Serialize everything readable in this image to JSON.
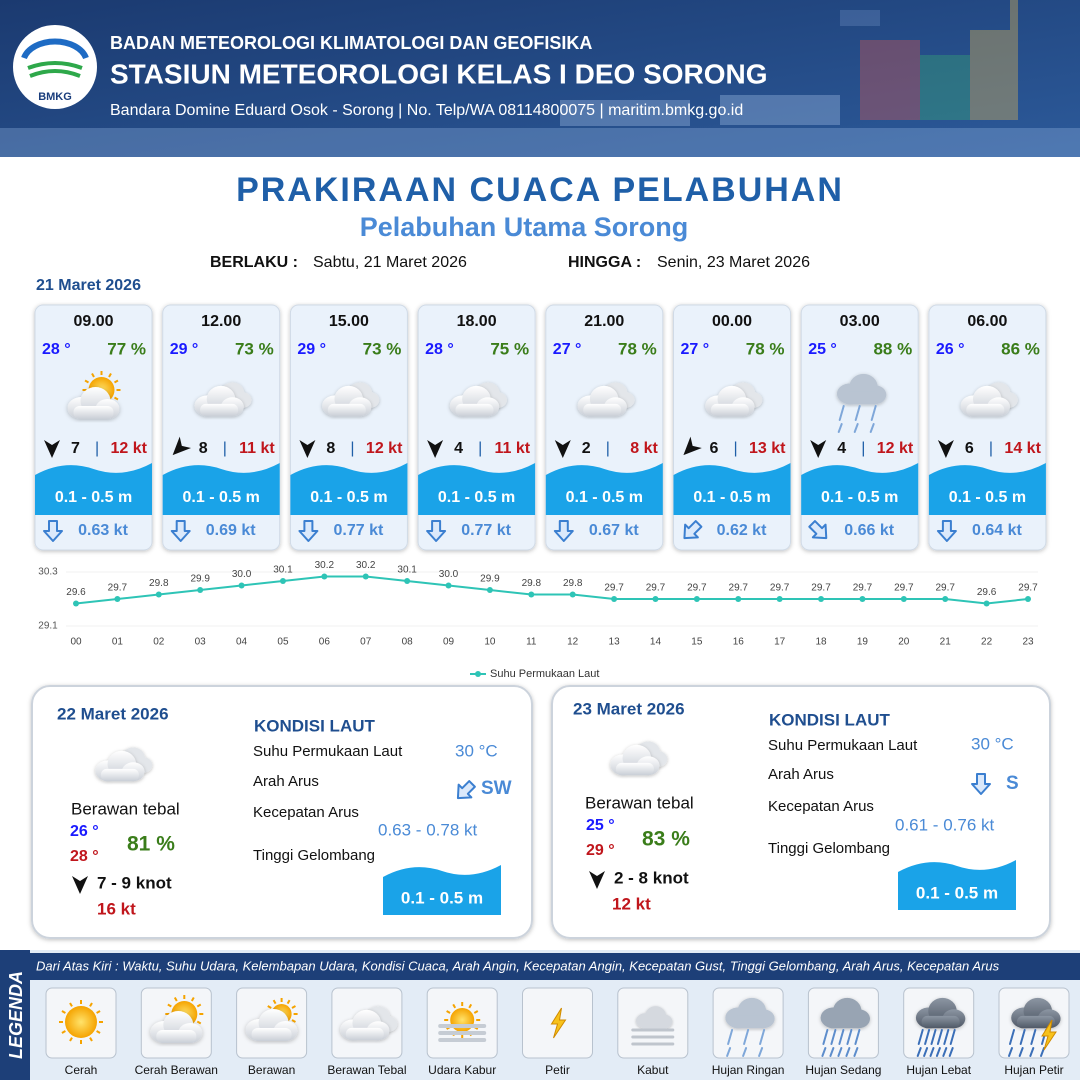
{
  "header": {
    "logo": "BMKG",
    "org": "BADAN METEOROLOGI KLIMATOLOGI DAN GEOFISIKA",
    "station": "STASIUN METEOROLOGI KELAS I DEO SORONG",
    "contact": "Bandara Domine Eduard Osok - Sorong | No. Telp/WA 08114800075 | maritim.bmkg.go.id"
  },
  "title": "PRAKIRAAN CUACA PELABUHAN",
  "subtitle": "Pelabuhan Utama Sorong",
  "validity": {
    "from_label": "BERLAKU :",
    "from": "Sabtu, 21 Maret 2026",
    "to_label": "HINGGA :",
    "to": "Senin, 23 Maret 2026"
  },
  "day1": {
    "date": "21 Maret 2026",
    "slots": [
      {
        "time": "09.00",
        "temp": "28 °",
        "humidity": "77 %",
        "wind": "7",
        "gust": "12 kt",
        "wave": "0.1 - 0.5 m",
        "current": "0.63 kt"
      },
      {
        "time": "12.00",
        "temp": "29 °",
        "humidity": "73 %",
        "wind": "8",
        "gust": "11 kt",
        "wave": "0.1 - 0.5 m",
        "current": "0.69 kt"
      },
      {
        "time": "15.00",
        "temp": "29 °",
        "humidity": "73 %",
        "wind": "8",
        "gust": "12 kt",
        "wave": "0.1 - 0.5 m",
        "current": "0.77 kt"
      },
      {
        "time": "18.00",
        "temp": "28 °",
        "humidity": "75 %",
        "wind": "4",
        "gust": "11 kt",
        "wave": "0.1 - 0.5 m",
        "current": "0.77 kt"
      },
      {
        "time": "21.00",
        "temp": "27 °",
        "humidity": "78 %",
        "wind": "2",
        "gust": "8 kt",
        "wave": "0.1 - 0.5 m",
        "current": "0.67 kt"
      },
      {
        "time": "00.00",
        "temp": "27 °",
        "humidity": "78 %",
        "wind": "6",
        "gust": "13 kt",
        "wave": "0.1 - 0.5 m",
        "current": "0.62 kt"
      },
      {
        "time": "03.00",
        "temp": "25 °",
        "humidity": "88 %",
        "wind": "4",
        "gust": "12 kt",
        "wave": "0.1 - 0.5 m",
        "current": "0.66 kt"
      },
      {
        "time": "06.00",
        "temp": "26 °",
        "humidity": "86 %",
        "wind": "6",
        "gust": "14 kt",
        "wave": "0.1 - 0.5 m",
        "current": "0.64 kt"
      }
    ]
  },
  "sst_chart": {
    "type": "line",
    "x": [
      "00",
      "01",
      "02",
      "03",
      "04",
      "05",
      "06",
      "07",
      "08",
      "09",
      "10",
      "11",
      "12",
      "13",
      "14",
      "15",
      "16",
      "17",
      "18",
      "19",
      "20",
      "21",
      "22",
      "23"
    ],
    "values": [
      29.6,
      29.7,
      29.8,
      29.9,
      30.0,
      30.1,
      30.2,
      30.2,
      30.1,
      30.0,
      29.9,
      29.8,
      29.8,
      29.7,
      29.7,
      29.7,
      29.7,
      29.7,
      29.7,
      29.7,
      29.7,
      29.7,
      29.6,
      29.7
    ],
    "value_labels": [
      "29.6",
      "29.7",
      "29.8",
      "29.9",
      "30.0",
      "30.1",
      "30.2",
      "30.2",
      "30.1",
      "30.0",
      "29.9",
      "29.8",
      "29.8",
      "29.7",
      "29.7",
      "29.7",
      "29.7",
      "29.7",
      "29.7",
      "29.7",
      "29.7",
      "29.7",
      "29.6",
      "29.7"
    ],
    "ylim": [
      29.1,
      30.3
    ],
    "yticks": [
      29.1,
      30.3
    ],
    "series_name": "Suhu Permukaan Laut",
    "color": "#2ec4b6"
  },
  "panels": [
    {
      "date": "22 Maret 2026",
      "condition": "Berawan tebal",
      "temp_min": "26 °",
      "temp_max": "28 °",
      "humidity": "81 %",
      "wind": "7 - 9 knot",
      "gust": "16 kt",
      "sea_heading": "KONDISI LAUT",
      "sst_label": "Suhu Permukaan Laut",
      "sst": "30 °C",
      "current_dir_label": "Arah Arus",
      "current_dir": "SW",
      "current_speed_label": "Kecepatan Arus",
      "current_speed": "0.63 - 0.78 kt",
      "wave_label": "Tinggi Gelombang",
      "wave": "0.1 - 0.5 m"
    },
    {
      "date": "23 Maret 2026",
      "condition": "Berawan tebal",
      "temp_min": "25 °",
      "temp_max": "29 °",
      "humidity": "83 %",
      "wind": "2 - 8 knot",
      "gust": "12 kt",
      "sea_heading": "KONDISI LAUT",
      "sst_label": "Suhu Permukaan Laut",
      "sst": "30 °C",
      "current_dir_label": "Arah Arus",
      "current_dir": "S",
      "current_speed_label": "Kecepatan Arus",
      "current_speed": "0.61 - 0.76 kt",
      "wave_label": "Tinggi Gelombang",
      "wave": "0.1 - 0.5 m"
    }
  ],
  "legend": {
    "title": "LEGENDA",
    "description": "Dari Atas Kiri : Waktu, Suhu Udara, Kelembapan Udara, Kondisi Cuaca, Arah Angin, Kecepatan Angin, Kecepatan Gust, Tinggi Gelombang, Arah Arus, Kecepatan Arus",
    "items": [
      "Cerah",
      "Cerah Berawan",
      "Berawan",
      "Berawan Tebal",
      "Udara Kabur",
      "Petir",
      "Kabut",
      "Hujan Ringan",
      "Hujan Sedang",
      "Hujan Lebat",
      "Hujan Petir"
    ]
  }
}
